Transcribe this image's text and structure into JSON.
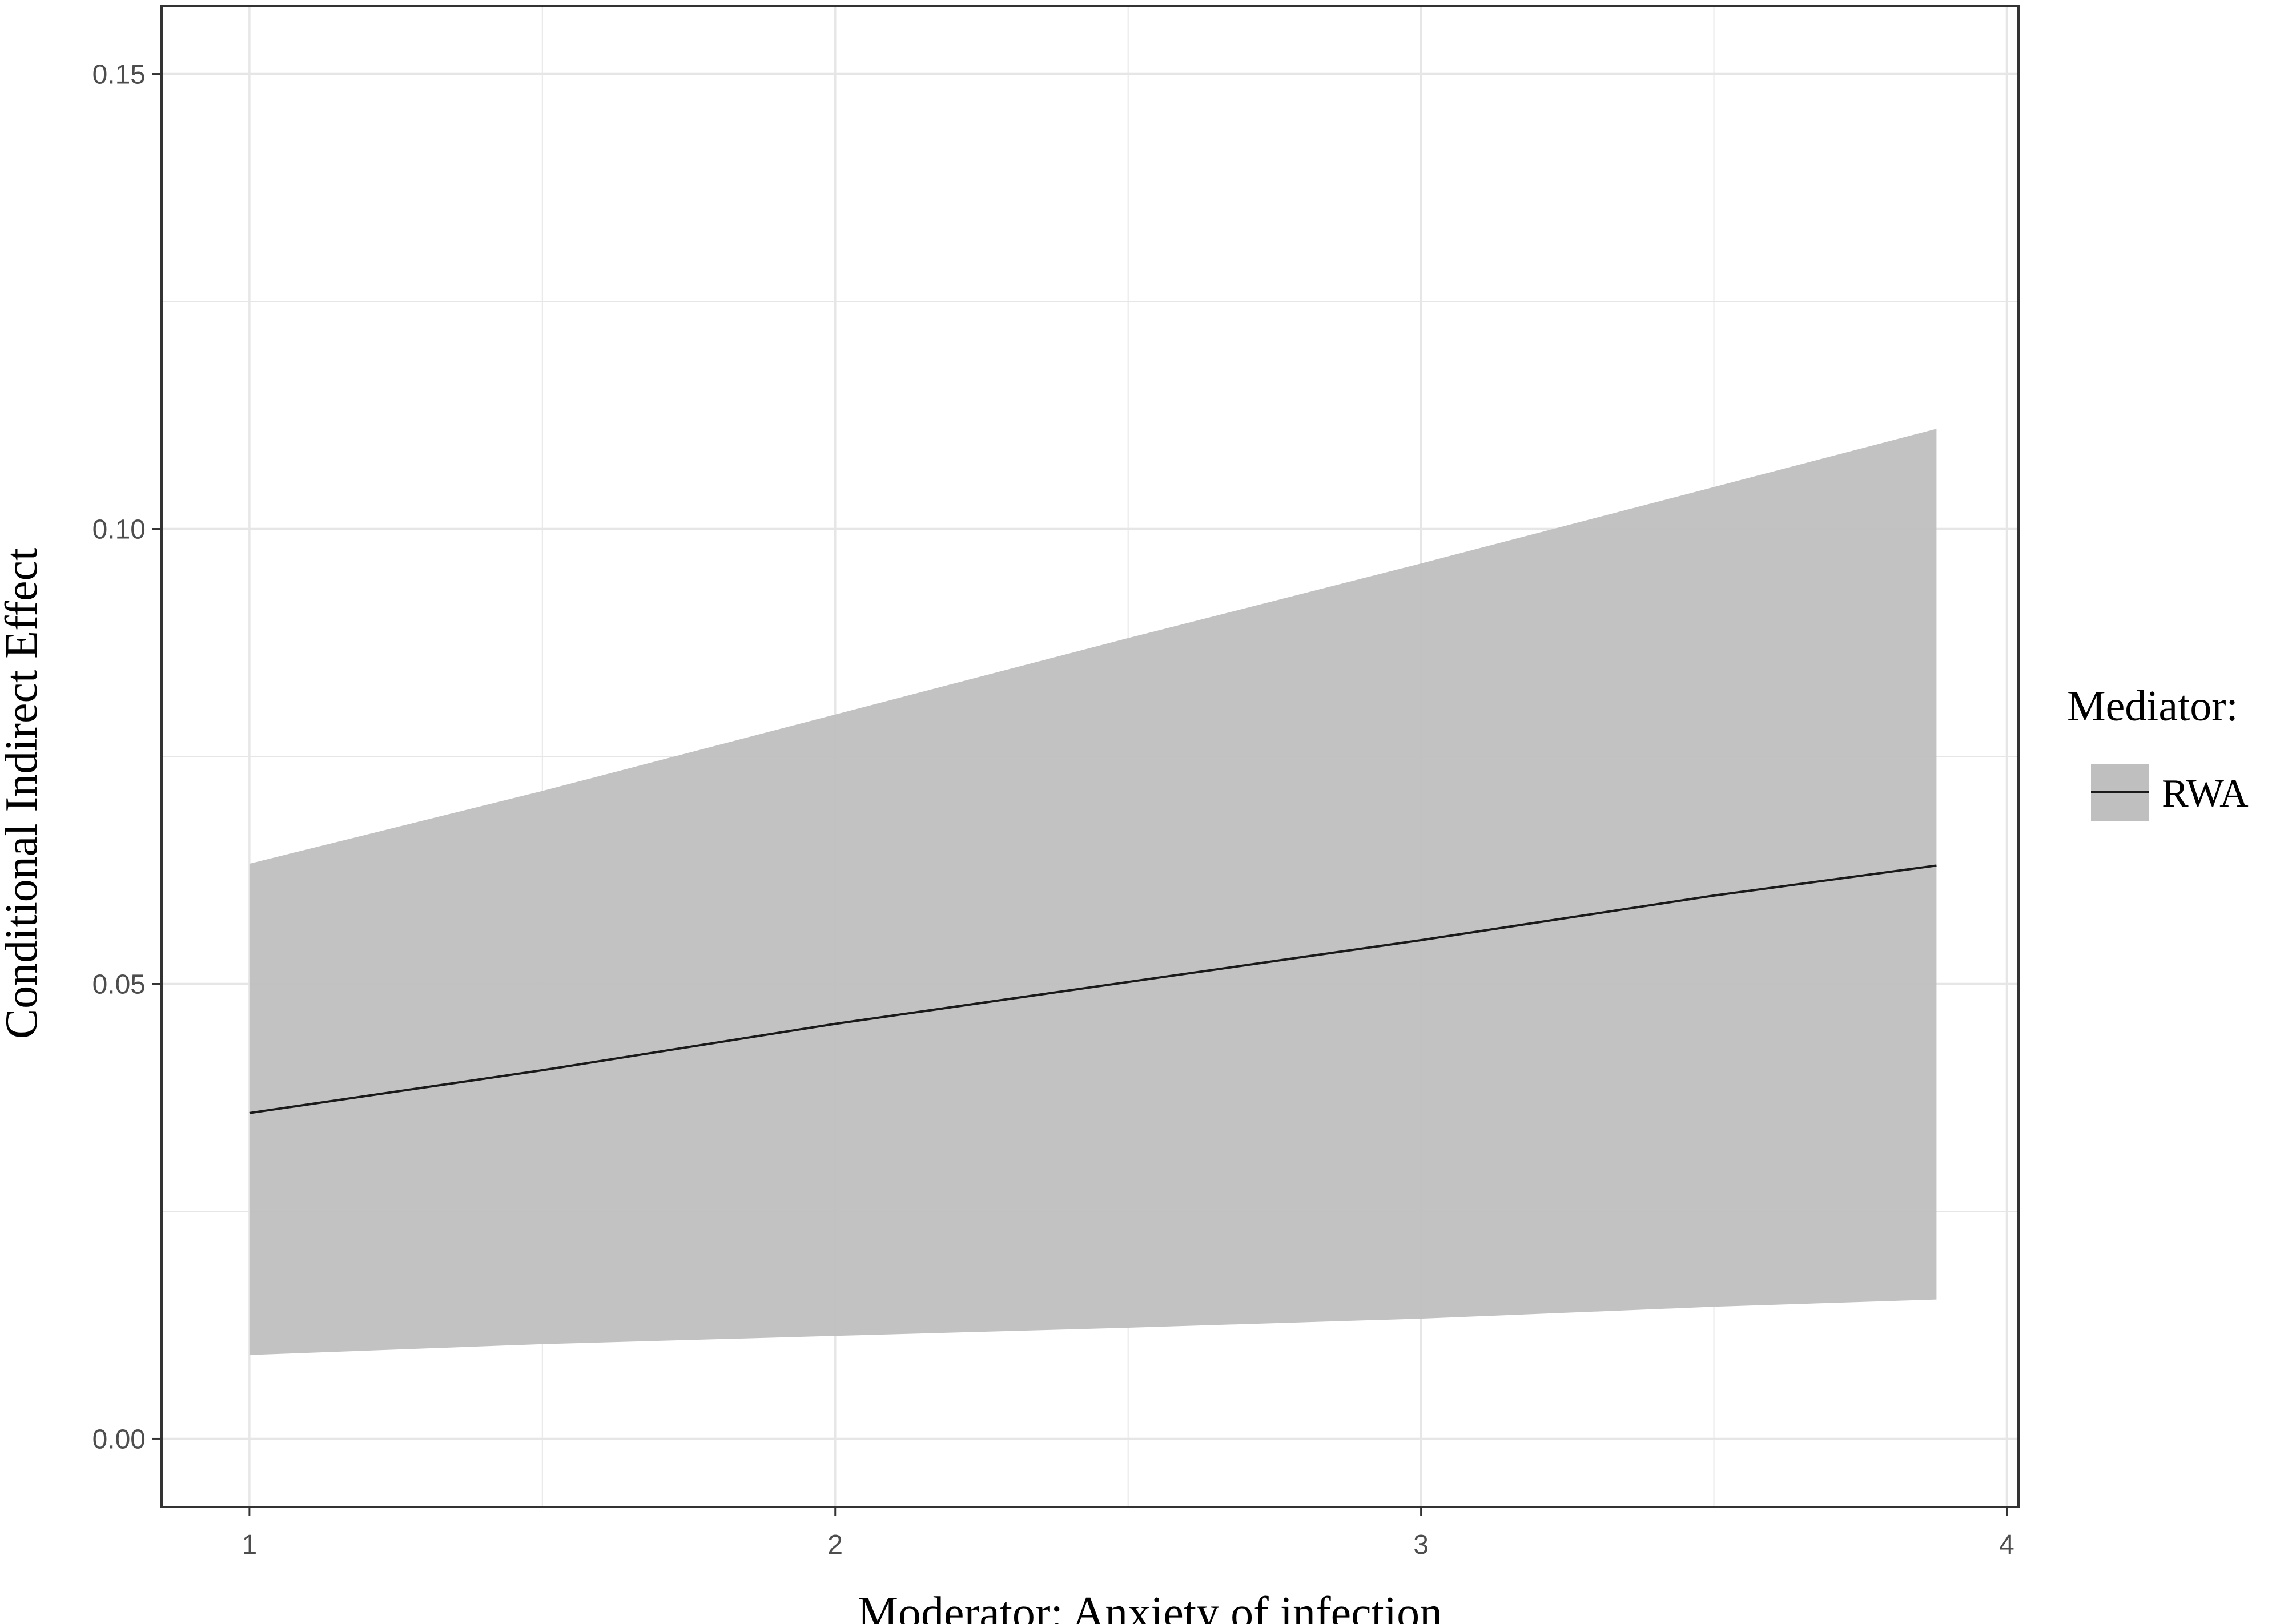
{
  "chart_data": {
    "type": "area",
    "title": "",
    "xlabel": "Moderator: Anxiety of infection",
    "ylabel": "Conditional Indirect Effect",
    "xlim": [
      0.85,
      4.02
    ],
    "ylim": [
      -0.0075,
      0.1575
    ],
    "x_ticks": [
      {
        "value": 1,
        "label": "1"
      },
      {
        "value": 2,
        "label": "2"
      },
      {
        "value": 3,
        "label": "3"
      },
      {
        "value": 4,
        "label": "4"
      }
    ],
    "y_ticks": [
      {
        "value": 0,
        "label": "0.00"
      },
      {
        "value": 0.05,
        "label": "0.05"
      },
      {
        "value": 0.1,
        "label": "0.10"
      },
      {
        "value": 0.15,
        "label": "0.15"
      }
    ],
    "x_minor": [
      1.5,
      2.5,
      3.5
    ],
    "y_minor": [
      0.025,
      0.075,
      0.125
    ],
    "grid": true,
    "legend": {
      "title": "Mediator:",
      "position": "right",
      "entries": [
        {
          "label": "RWA"
        }
      ]
    },
    "series": [
      {
        "name": "RWA",
        "x": [
          1.0,
          1.5,
          2.0,
          2.5,
          3.0,
          3.5,
          3.88
        ],
        "estimate": [
          0.0358,
          0.0405,
          0.0456,
          0.0502,
          0.0548,
          0.0597,
          0.063
        ],
        "lower": [
          0.0092,
          0.0104,
          0.0113,
          0.0122,
          0.0132,
          0.0145,
          0.0153
        ],
        "upper": [
          0.0632,
          0.0712,
          0.0796,
          0.088,
          0.0962,
          0.1046,
          0.111
        ]
      }
    ],
    "colors": {
      "band": "#bfbfbf",
      "line": "#1a1a1a",
      "grid": "#e6e6e6",
      "panel_border": "#333333"
    }
  }
}
